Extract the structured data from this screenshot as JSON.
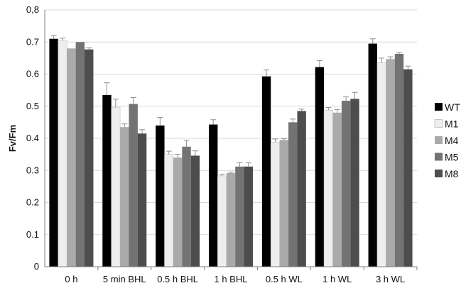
{
  "chart_data": {
    "type": "bar",
    "categories": [
      "0 h",
      "5 min BHL",
      "0.5 h BHL",
      "1 h BHL",
      "0.5 h WL",
      "1 h WL",
      "3 h WL"
    ],
    "series": [
      {
        "name": "WT",
        "color": "#000000",
        "values": [
          0.71,
          0.535,
          0.44,
          0.443,
          0.593,
          0.622,
          0.695
        ],
        "errors": [
          0.01,
          0.038,
          0.025,
          0.015,
          0.02,
          0.02,
          0.015
        ]
      },
      {
        "name": "M1",
        "color": "#eeeeee",
        "values": [
          0.705,
          0.497,
          0.35,
          0.283,
          0.388,
          0.488,
          0.635
        ],
        "errors": [
          0.007,
          0.025,
          0.01,
          0.005,
          0.01,
          0.008,
          0.015
        ]
      },
      {
        "name": "M4",
        "color": "#aaaaaa",
        "values": [
          0.68,
          0.435,
          0.34,
          0.292,
          0.395,
          0.48,
          0.647
        ],
        "errors": [
          0.0,
          0.01,
          0.01,
          0.003,
          0.004,
          0.01,
          0.007
        ]
      },
      {
        "name": "M5",
        "color": "#737373",
        "values": [
          0.7,
          0.507,
          0.374,
          0.312,
          0.45,
          0.517,
          0.663
        ],
        "errors": [
          0.0,
          0.02,
          0.02,
          0.012,
          0.01,
          0.012,
          0.004
        ]
      },
      {
        "name": "M8",
        "color": "#4d4d4d",
        "values": [
          0.677,
          0.415,
          0.346,
          0.312,
          0.485,
          0.523,
          0.615
        ],
        "errors": [
          0.005,
          0.012,
          0.015,
          0.012,
          0.006,
          0.02,
          0.01
        ]
      }
    ],
    "title": "",
    "xlabel": "",
    "ylabel": "Fv/Fm",
    "ylim": [
      0,
      0.8
    ],
    "yticks": [
      "0",
      "0.1",
      "0.2",
      "0.3",
      "0.4",
      "0.5",
      "0.6",
      "0.7",
      "0,8"
    ],
    "ytick_values": [
      0,
      0.1,
      0.2,
      0.3,
      0.4,
      0.5,
      0.6,
      0.7,
      0.8
    ],
    "grid": true,
    "legend_position": "right"
  }
}
